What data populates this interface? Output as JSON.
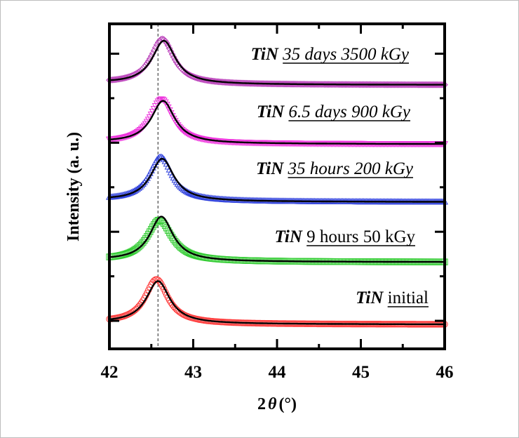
{
  "chart_data": {
    "type": "scatter",
    "title": "",
    "xlabel": "2θ (°)",
    "xlabel_parts": {
      "prefix": "2",
      "symbol": "θ",
      "suffix": "(°)"
    },
    "ylabel": "Intensity (a. u.)",
    "xlim": [
      42,
      46
    ],
    "ylim": [
      0,
      7.3
    ],
    "x_ticks": [
      42,
      43,
      44,
      45,
      46
    ],
    "x_tick_labels": [
      "42",
      "43",
      "44",
      "45",
      "46"
    ],
    "y_tick_labels_shown": false,
    "grid": false,
    "legend": "none",
    "reference_line": {
      "x": 42.58,
      "style": "dashed",
      "color": "#555555"
    },
    "series": [
      {
        "name": "TiN initial",
        "prefix": "TiN",
        "label": "initial",
        "italic_label": false,
        "marker": "circle",
        "color": "#ff3b3b",
        "peak_x": 42.58,
        "baseline": 0.55,
        "peak_height": 0.95,
        "fit_color": "#000000"
      },
      {
        "name": "TiN 9 hours 50 kGy",
        "prefix": "TiN",
        "label": "9 hours 50 kGy",
        "italic_label": false,
        "marker": "square",
        "color": "#33cc33",
        "peak_x": 42.62,
        "baseline": 1.95,
        "peak_height": 1.0,
        "fit_color": "#000000"
      },
      {
        "name": "TiN 35 hours 200 kGy",
        "prefix": "TiN",
        "label": "35 hours 200 kGy",
        "italic_label": true,
        "marker": "triangle-up",
        "color": "#3344dd",
        "peak_x": 42.63,
        "baseline": 3.3,
        "peak_height": 0.95,
        "fit_color": "#000000"
      },
      {
        "name": "TiN 6.5 days 900 kGy",
        "prefix": "TiN",
        "label": "6.5 days 900 kGy",
        "italic_label": true,
        "marker": "triangle-down",
        "color": "#ee33dd",
        "peak_x": 42.64,
        "baseline": 4.6,
        "peak_height": 0.95,
        "fit_color": "#000000"
      },
      {
        "name": "TiN 35 days 3500 kGy",
        "prefix": "TiN",
        "label": "35 days 3500 kGy",
        "italic_label": true,
        "marker": "diamond",
        "color": "#bb44bb",
        "peak_x": 42.65,
        "baseline": 5.93,
        "peak_height": 0.97,
        "fit_color": "#000000"
      }
    ]
  }
}
